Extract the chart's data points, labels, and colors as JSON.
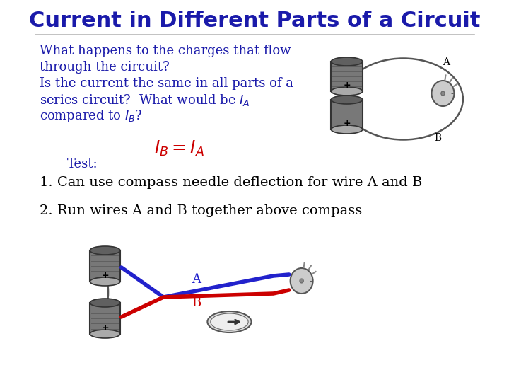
{
  "title": "Current in Different Parts of a Circuit",
  "title_color": "#1a1aaa",
  "title_fontsize": 22,
  "bg_color": "#FFFFFF",
  "body_text_color": "#1a1aaa",
  "body_fontsize": 13,
  "para1_lines": [
    "What happens to the charges that flow",
    "through the circuit?",
    "Is the current the same in all parts of a",
    "series circuit?  What would be $I_A$",
    "compared to $I_B$?"
  ],
  "equation_text": "$I_B = I_A$",
  "equation_color": "#CC0000",
  "equation_fontsize": 18,
  "test_label": "Test:",
  "test_color": "#1a1aaa",
  "point1": "1. Can use compass needle deflection for wire A and B",
  "point1_color": "#000000",
  "point1_fontsize": 14,
  "point2": "2. Run wires A and B together above compass",
  "point2_color": "#000000",
  "point2_fontsize": 14,
  "label_A_color": "#2222CC",
  "label_B_color": "#CC0000",
  "wire_A_color": "#2222CC",
  "wire_B_color": "#CC0000",
  "diagram_label_A": "A",
  "diagram_label_B": "B"
}
